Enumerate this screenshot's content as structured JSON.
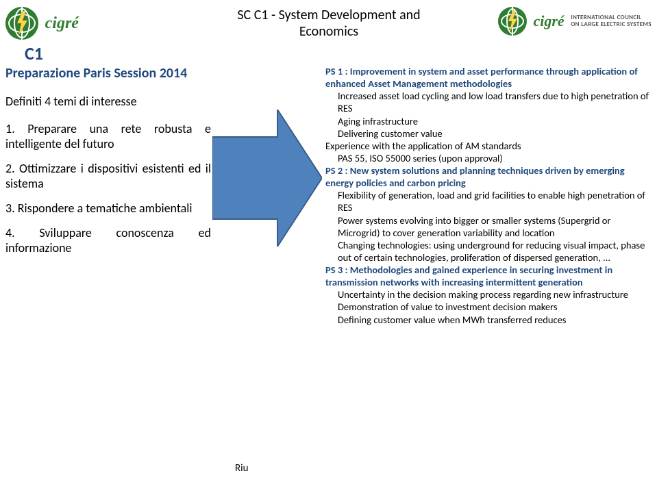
{
  "header": {
    "title_line1": "SC C1 - System Development and",
    "title_line2": "Economics",
    "c1_label": "C1",
    "left_brand": "cigré",
    "right_brand": "cigré",
    "council_line1": "INTERNATIONAL COUNCIL",
    "council_line2": "ON LARGE ELECTRIC SYSTEMS",
    "logo_color": "#2e7d32",
    "bolt_color": "#ffd54f"
  },
  "left": {
    "session_title": "Preparazione Paris Session 2014",
    "defined": "Definiti 4 temi di interesse",
    "items": [
      {
        "n": "1.",
        "text": "Preparare una rete robusta e intelligente del futuro"
      },
      {
        "n": "2.",
        "text": "Ottimizzare i dispositivi esistenti ed il sistema"
      },
      {
        "n": "3.",
        "text": "Rispondere a tematiche ambientali"
      },
      {
        "n": "4.",
        "text": "Sviluppare conoscenza ed informazione"
      }
    ]
  },
  "arrow": {
    "fill": "#4f81bd",
    "stroke": "#385d8a"
  },
  "right": {
    "lines": [
      {
        "cls": "",
        "head": " PS 1 : Improvement in system and asset performance through application of enhanced Asset Management methodologies",
        "text": ""
      },
      {
        "cls": "indent1",
        "head": "",
        "text": "Increased asset load cycling and low load transfers due to high penetration of RES"
      },
      {
        "cls": "indent1",
        "head": "",
        "text": "Aging infrastructure"
      },
      {
        "cls": "indent1",
        "head": "",
        "text": "Delivering customer value"
      },
      {
        "cls": "",
        "head": "",
        "text": "Experience with the application of AM standards"
      },
      {
        "cls": "indent1",
        "head": "",
        "text": "PAS 55, ISO 55000 series (upon approval)"
      },
      {
        "cls": "",
        "head": " PS 2 : New system solutions and planning techniques driven by emerging energy policies and carbon pricing",
        "text": ""
      },
      {
        "cls": "indent1",
        "head": "",
        "text": "Flexibility of generation, load and grid facilities to enable high penetration of RES"
      },
      {
        "cls": "indent1",
        "head": "",
        "text": "Power systems evolving into bigger or smaller systems (Supergrid or Microgrid) to cover generation variability and location"
      },
      {
        "cls": "indent1",
        "head": "",
        "text": "Changing technologies: using underground for reducing visual impact, phase out of certain technologies, proliferation of dispersed generation, ..."
      },
      {
        "cls": "",
        "head": " PS 3 : Methodologies and gained experience in securing investment in transmission networks with increasing intermittent generation",
        "text": ""
      },
      {
        "cls": "indent1",
        "head": "",
        "text": "Uncertainty in the decision making process regarding new infrastructure"
      },
      {
        "cls": "indent1",
        "head": "",
        "text": "Demonstration of value to investment decision makers"
      },
      {
        "cls": "indent1",
        "head": "",
        "text": "Defining customer value when MWh transferred reduces"
      }
    ]
  },
  "footer": {
    "ri": "Riu"
  }
}
